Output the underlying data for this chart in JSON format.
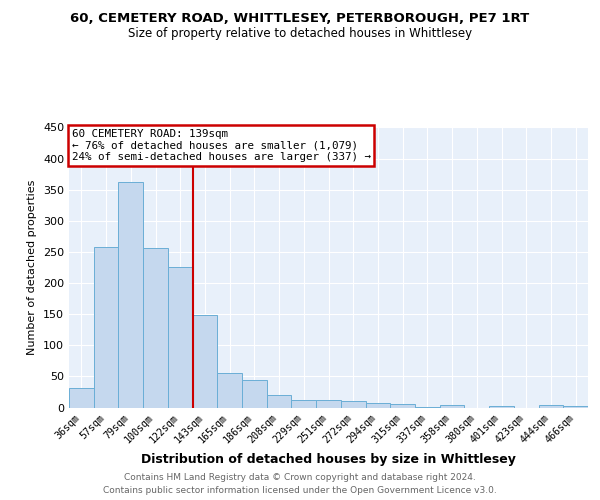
{
  "title1": "60, CEMETERY ROAD, WHITTLESEY, PETERBOROUGH, PE7 1RT",
  "title2": "Size of property relative to detached houses in Whittlesey",
  "xlabel": "Distribution of detached houses by size in Whittlesey",
  "ylabel": "Number of detached properties",
  "categories": [
    "36sqm",
    "57sqm",
    "79sqm",
    "100sqm",
    "122sqm",
    "143sqm",
    "165sqm",
    "186sqm",
    "208sqm",
    "229sqm",
    "251sqm",
    "272sqm",
    "294sqm",
    "315sqm",
    "337sqm",
    "358sqm",
    "380sqm",
    "401sqm",
    "423sqm",
    "444sqm",
    "466sqm"
  ],
  "values": [
    32,
    258,
    362,
    256,
    226,
    148,
    55,
    45,
    20,
    12,
    12,
    10,
    7,
    6,
    1,
    4,
    0,
    3,
    0,
    4,
    3
  ],
  "bar_color": "#c5d8ee",
  "bar_edge_color": "#6aaed6",
  "bg_color": "#e8f0fa",
  "grid_color": "#ffffff",
  "red_line_index": 5,
  "annotation_line1": "60 CEMETERY ROAD: 139sqm",
  "annotation_line2": "← 76% of detached houses are smaller (1,079)",
  "annotation_line3": "24% of semi-detached houses are larger (337) →",
  "annotation_box_color": "#ffffff",
  "annotation_box_edge": "#cc0000",
  "footnote1": "Contains HM Land Registry data © Crown copyright and database right 2024.",
  "footnote2": "Contains public sector information licensed under the Open Government Licence v3.0.",
  "ylim": [
    0,
    450
  ],
  "yticks": [
    0,
    50,
    100,
    150,
    200,
    250,
    300,
    350,
    400,
    450
  ]
}
